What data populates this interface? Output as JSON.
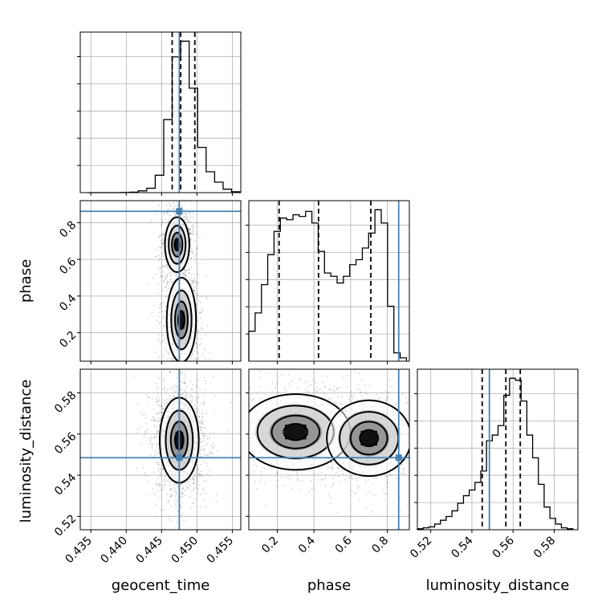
{
  "chart_data": {
    "type": "corner",
    "parameters": [
      "geocent_time",
      "phase",
      "luminosity_distance"
    ],
    "truths": {
      "geocent_time": 0.4475,
      "phase": 0.862,
      "luminosity_distance": 0.5485
    },
    "quantiles": {
      "geocent_time": [
        0.4465,
        0.4477,
        0.4497
      ],
      "phase": [
        0.21,
        0.425,
        0.71
      ],
      "luminosity_distance": [
        0.545,
        0.5565,
        0.5635
      ]
    },
    "ranges": {
      "geocent_time": [
        0.4335,
        0.4562
      ],
      "phase": [
        0.045,
        0.92
      ],
      "luminosity_distance": [
        0.5135,
        0.5915
      ]
    },
    "ticks": {
      "geocent_time": [
        "0.435",
        "0.440",
        "0.445",
        "0.450",
        "0.455"
      ],
      "phase": [
        "0.2",
        "0.4",
        "0.6",
        "0.8"
      ],
      "luminosity_distance": [
        "0.52",
        "0.54",
        "0.56",
        "0.58"
      ]
    },
    "histograms": {
      "geocent_time": {
        "edges": [
          0.4345,
          0.4357,
          0.4369,
          0.4381,
          0.4393,
          0.4405,
          0.4417,
          0.4429,
          0.4441,
          0.4453,
          0.4465,
          0.4477,
          0.4489,
          0.4501,
          0.4513,
          0.4525,
          0.4537,
          0.4549,
          0.4561
        ],
        "counts": [
          0,
          0,
          0,
          0,
          0.1,
          0.3,
          1,
          2.5,
          10,
          42,
          78,
          87,
          60,
          26,
          12,
          6,
          2,
          0.5
        ]
      },
      "phase": {
        "edges": [
          0.045,
          0.0794,
          0.1138,
          0.1481,
          0.1825,
          0.2169,
          0.2513,
          0.2856,
          0.32,
          0.3544,
          0.3888,
          0.4231,
          0.4575,
          0.4919,
          0.5263,
          0.5606,
          0.595,
          0.6294,
          0.6638,
          0.6981,
          0.7325,
          0.7669,
          0.8013,
          0.8356,
          0.87,
          0.9044
        ],
        "counts": [
          18,
          29,
          46,
          64,
          78,
          86,
          85,
          88,
          87,
          90,
          83,
          66,
          53,
          51,
          47,
          51,
          58,
          61,
          68,
          77,
          91,
          83,
          33,
          5,
          2
        ]
      },
      "luminosity_distance": {
        "edges": [
          0.5135,
          0.5163,
          0.5191,
          0.5219,
          0.5247,
          0.5275,
          0.5303,
          0.5331,
          0.5359,
          0.5387,
          0.5415,
          0.5443,
          0.5471,
          0.5499,
          0.5527,
          0.5555,
          0.5583,
          0.5611,
          0.5639,
          0.5667,
          0.5695,
          0.5723,
          0.5751,
          0.5779,
          0.5807,
          0.5835,
          0.5863,
          0.5891
        ],
        "counts": [
          0.5,
          1,
          1.5,
          3,
          5,
          7,
          10,
          14,
          18,
          21,
          25,
          31,
          47,
          50,
          55,
          71,
          80,
          79,
          68,
          50,
          38,
          24,
          12,
          6,
          3,
          1,
          0.5
        ]
      }
    },
    "joint_modes": {
      "phase_vs_geocent_time": [
        {
          "x": 0.4472,
          "y": 0.68
        },
        {
          "x": 0.4478,
          "y": 0.27
        }
      ],
      "luminosity_distance_vs_geocent_time": [
        {
          "x": 0.4475,
          "y": 0.557
        }
      ],
      "luminosity_distance_vs_phase": [
        {
          "x": 0.3,
          "y": 0.561
        },
        {
          "x": 0.7,
          "y": 0.558
        }
      ]
    },
    "colors": {
      "truth": "#4682b4",
      "hist": "#000000",
      "density": "#000000",
      "grid": "#b0b0b0"
    }
  }
}
